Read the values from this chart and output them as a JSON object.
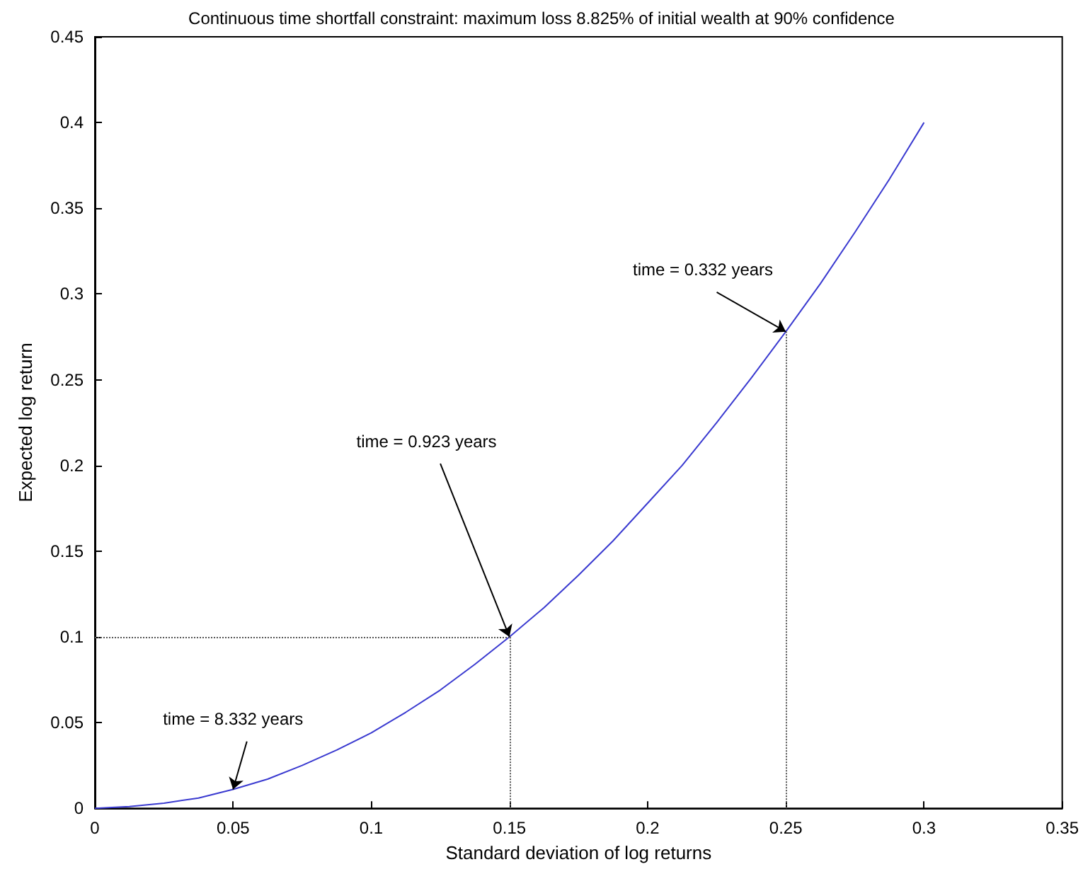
{
  "chart_data": {
    "type": "line",
    "title": "Continuous time shortfall constraint: maximum loss 8.825% of initial wealth at 90% confidence",
    "xlabel": "Standard deviation of log returns",
    "ylabel": "Expected log return",
    "x": [
      0,
      0.0125,
      0.025,
      0.0375,
      0.05,
      0.0625,
      0.075,
      0.0875,
      0.1,
      0.1125,
      0.125,
      0.1375,
      0.15,
      0.1625,
      0.175,
      0.1875,
      0.2,
      0.2125,
      0.225,
      0.2375,
      0.25,
      0.2625,
      0.275,
      0.2875,
      0.3
    ],
    "series": [
      {
        "color": "#3a3ad0",
        "values": [
          0,
          0.001,
          0.003,
          0.006,
          0.011,
          0.017,
          0.025,
          0.034,
          0.044,
          0.056,
          0.069,
          0.084,
          0.1,
          0.117,
          0.136,
          0.156,
          0.178,
          0.2,
          0.225,
          0.251,
          0.278,
          0.306,
          0.336,
          0.367,
          0.4
        ]
      }
    ],
    "xlim": [
      0,
      0.35
    ],
    "xticks": [
      0,
      0.05,
      0.1,
      0.15,
      0.2,
      0.25,
      0.3,
      0.35
    ],
    "ylim": [
      0,
      0.45
    ],
    "yticks": [
      0,
      0.05,
      0.1,
      0.15,
      0.2,
      0.25,
      0.3,
      0.35,
      0.4,
      0.45
    ],
    "grid": false,
    "marker": "none",
    "line_style": "solid",
    "ref_lines": [
      {
        "axis": "x",
        "value": 0.15,
        "color": "#555555",
        "line_style": "dotted"
      },
      {
        "axis": "y",
        "value": 0.1,
        "color": "#555555",
        "line_style": "dotted"
      },
      {
        "axis": "x",
        "value": 0.25,
        "color": "#555555",
        "line_style": "dotted"
      }
    ],
    "annotations": [
      {
        "text": "time = 8.332 years",
        "x": 0.05,
        "y": 0.011
      },
      {
        "text": "time = 0.923 years",
        "x": 0.15,
        "y": 0.1
      },
      {
        "text": "time = 0.332 years",
        "x": 0.25,
        "y": 0.278
      }
    ]
  }
}
